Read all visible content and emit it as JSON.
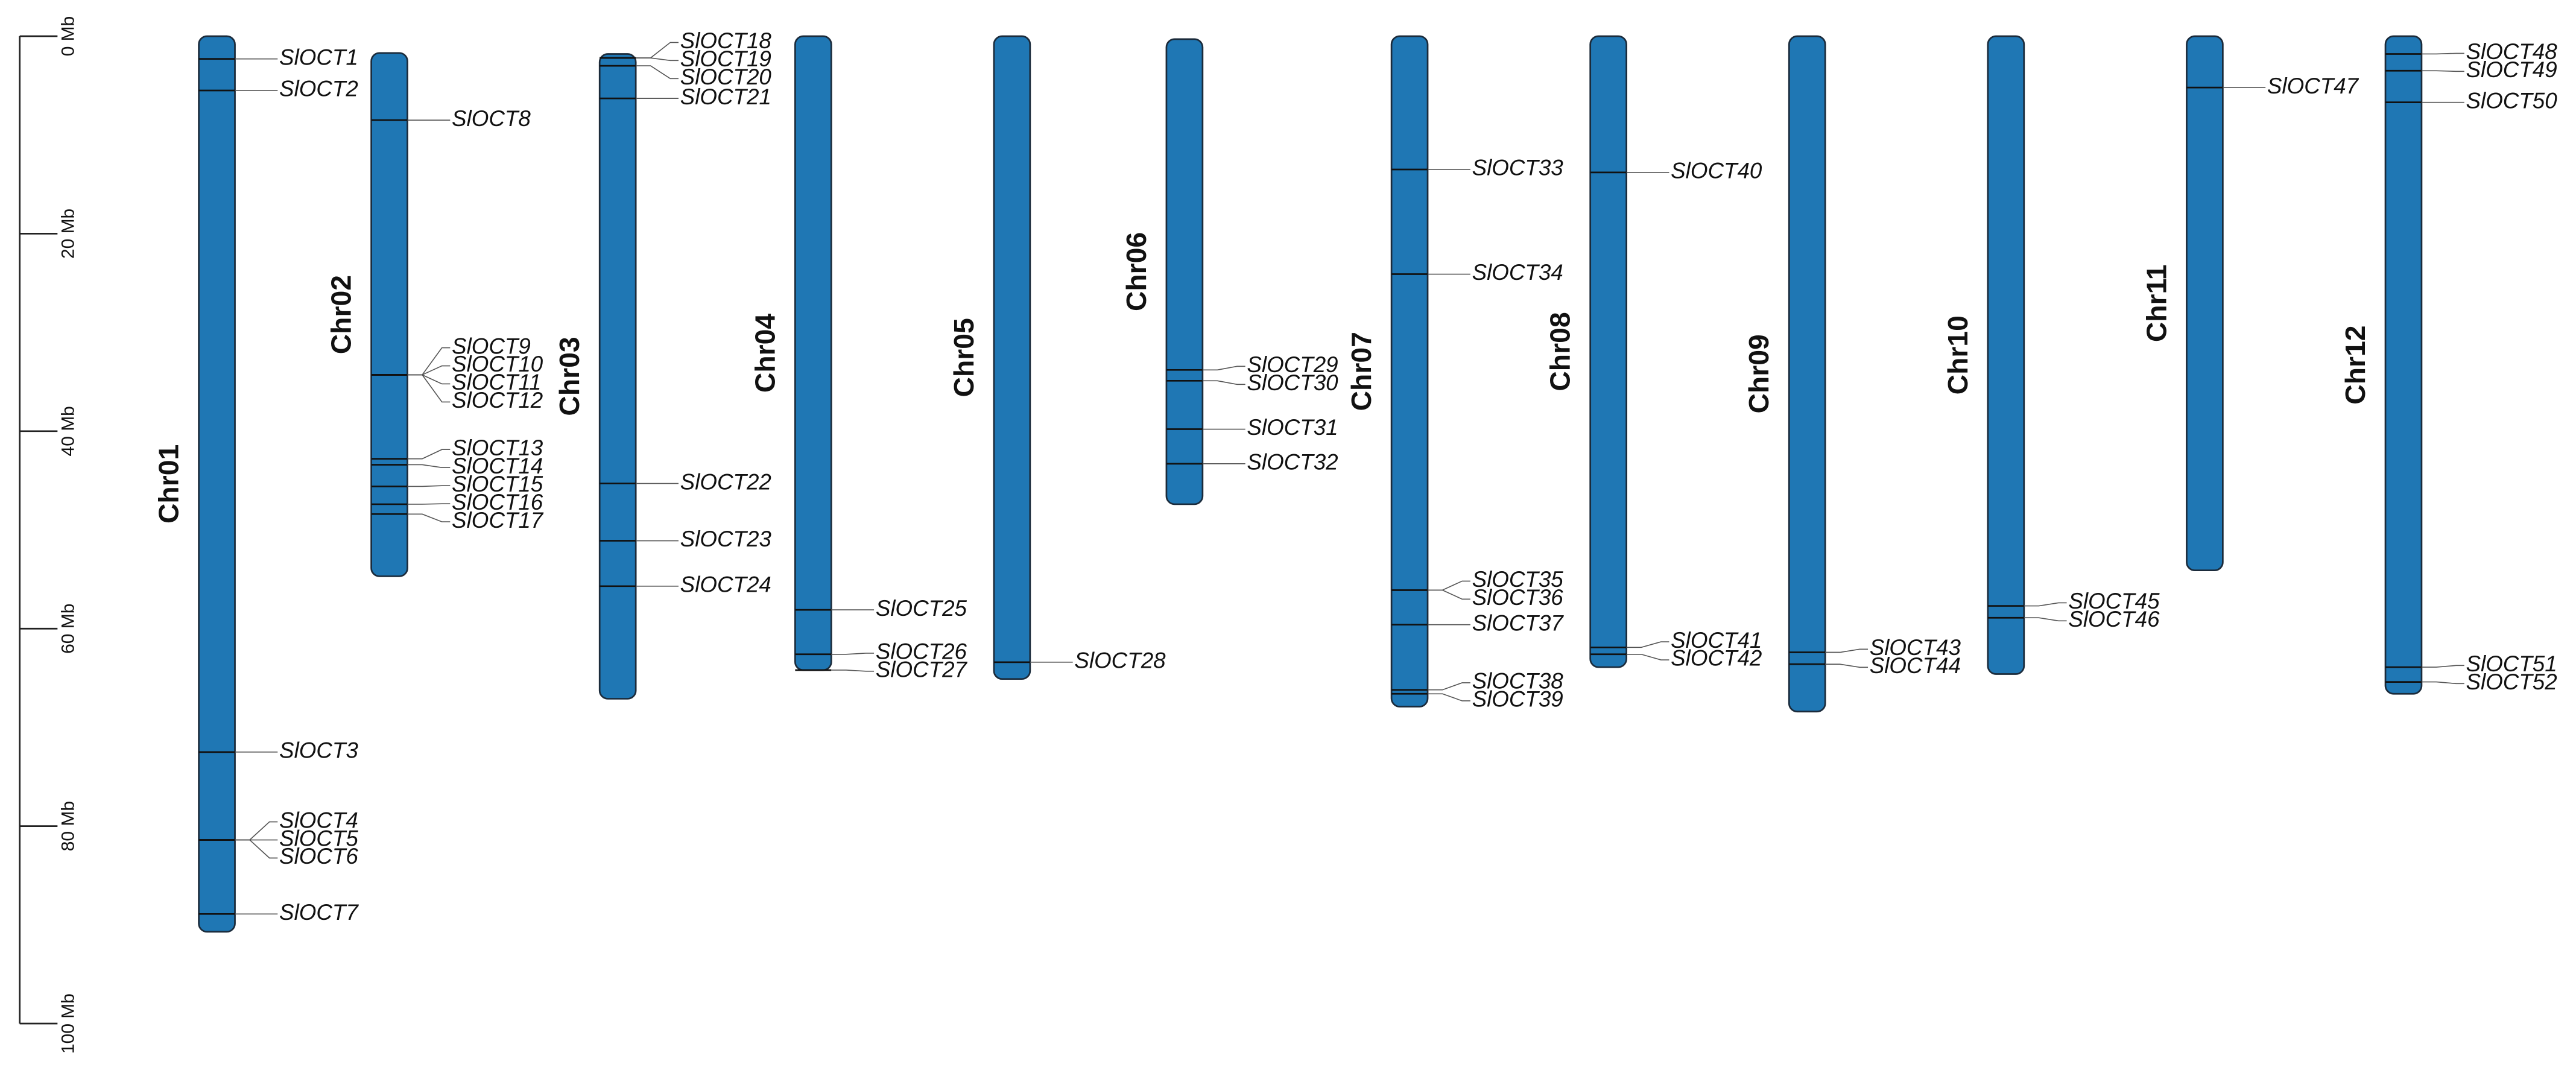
{
  "chart_data": {
    "type": "ideogram",
    "color": "#1f77b4",
    "ylim": [
      0,
      100
    ],
    "yticks": [
      {
        "value": 0,
        "label": "0 Mb"
      },
      {
        "value": 20,
        "label": "20 Mb"
      },
      {
        "value": 40,
        "label": "40 Mb"
      },
      {
        "value": 60,
        "label": "60 Mb"
      },
      {
        "value": 80,
        "label": "80 Mb"
      },
      {
        "value": 100,
        "label": "100 Mb"
      }
    ],
    "chromosomes": [
      {
        "name": "Chr01",
        "start": 0,
        "end": 90.7,
        "genes": [
          {
            "name": "SlOCT1",
            "position": 2.3
          },
          {
            "name": "SlOCT2",
            "position": 5.5
          },
          {
            "name": "SlOCT3",
            "position": 72.5
          },
          {
            "name": "SlOCT4",
            "position": 81.4
          },
          {
            "name": "SlOCT5",
            "position": 81.4
          },
          {
            "name": "SlOCT6",
            "position": 81.4
          },
          {
            "name": "SlOCT7",
            "position": 88.9
          }
        ]
      },
      {
        "name": "Chr02",
        "start": 1.7,
        "end": 54.7,
        "genes": [
          {
            "name": "SlOCT8",
            "position": 8.5
          },
          {
            "name": "SlOCT9",
            "position": 34.3
          },
          {
            "name": "SlOCT10",
            "position": 34.3
          },
          {
            "name": "SlOCT11",
            "position": 34.3
          },
          {
            "name": "SlOCT12",
            "position": 34.3
          },
          {
            "name": "SlOCT13",
            "position": 42.8
          },
          {
            "name": "SlOCT14",
            "position": 43.4
          },
          {
            "name": "SlOCT15",
            "position": 45.6
          },
          {
            "name": "SlOCT16",
            "position": 47.4
          },
          {
            "name": "SlOCT17",
            "position": 48.4
          }
        ]
      },
      {
        "name": "Chr03",
        "start": 1.8,
        "end": 67.1,
        "genes": [
          {
            "name": "SlOCT18",
            "position": 2.2
          },
          {
            "name": "SlOCT19",
            "position": 2.2
          },
          {
            "name": "SlOCT20",
            "position": 3.0
          },
          {
            "name": "SlOCT21",
            "position": 6.3
          },
          {
            "name": "SlOCT22",
            "position": 45.3
          },
          {
            "name": "SlOCT23",
            "position": 51.1
          },
          {
            "name": "SlOCT24",
            "position": 55.7
          }
        ]
      },
      {
        "name": "Chr04",
        "start": 0,
        "end": 64.2,
        "genes": [
          {
            "name": "SlOCT25",
            "position": 58.1
          },
          {
            "name": "SlOCT26",
            "position": 62.6
          },
          {
            "name": "SlOCT27",
            "position": 64.2
          }
        ]
      },
      {
        "name": "Chr05",
        "start": 0,
        "end": 65.1,
        "genes": [
          {
            "name": "SlOCT28",
            "position": 63.4
          }
        ]
      },
      {
        "name": "Chr06",
        "start": 0.3,
        "end": 47.4,
        "genes": [
          {
            "name": "SlOCT29",
            "position": 33.8
          },
          {
            "name": "SlOCT30",
            "position": 34.9
          },
          {
            "name": "SlOCT31",
            "position": 39.8
          },
          {
            "name": "SlOCT32",
            "position": 43.3
          }
        ]
      },
      {
        "name": "Chr07",
        "start": 0,
        "end": 67.9,
        "genes": [
          {
            "name": "SlOCT33",
            "position": 13.5
          },
          {
            "name": "SlOCT34",
            "position": 24.1
          },
          {
            "name": "SlOCT35",
            "position": 56.1
          },
          {
            "name": "SlOCT36",
            "position": 56.1
          },
          {
            "name": "SlOCT37",
            "position": 59.6
          },
          {
            "name": "SlOCT38",
            "position": 66.2
          },
          {
            "name": "SlOCT39",
            "position": 66.6
          }
        ]
      },
      {
        "name": "Chr08",
        "start": 0,
        "end": 63.9,
        "genes": [
          {
            "name": "SlOCT40",
            "position": 13.8
          },
          {
            "name": "SlOCT41",
            "position": 61.9
          },
          {
            "name": "SlOCT42",
            "position": 62.6
          }
        ]
      },
      {
        "name": "Chr09",
        "start": 0,
        "end": 68.4,
        "genes": [
          {
            "name": "SlOCT43",
            "position": 62.4
          },
          {
            "name": "SlOCT44",
            "position": 63.6
          }
        ]
      },
      {
        "name": "Chr10",
        "start": 0,
        "end": 64.6,
        "genes": [
          {
            "name": "SlOCT45",
            "position": 57.7
          },
          {
            "name": "SlOCT46",
            "position": 58.9
          }
        ]
      },
      {
        "name": "Chr11",
        "start": 0,
        "end": 54.1,
        "genes": [
          {
            "name": "SlOCT47",
            "position": 5.2
          }
        ]
      },
      {
        "name": "Chr12",
        "start": 0,
        "end": 66.6,
        "genes": [
          {
            "name": "SlOCT48",
            "position": 1.8
          },
          {
            "name": "SlOCT49",
            "position": 3.5
          },
          {
            "name": "SlOCT50",
            "position": 6.7
          },
          {
            "name": "SlOCT51",
            "position": 63.9
          },
          {
            "name": "SlOCT52",
            "position": 65.4
          }
        ]
      }
    ]
  }
}
